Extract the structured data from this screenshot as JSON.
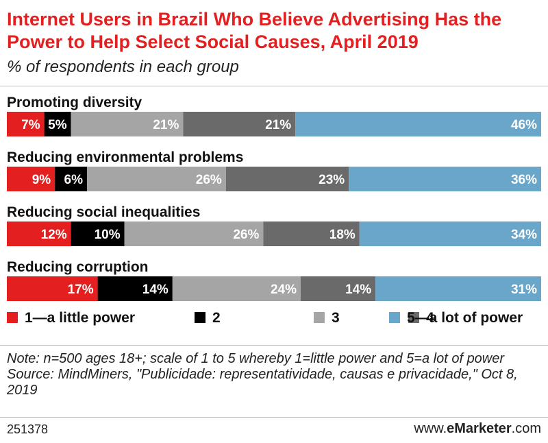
{
  "title": "Internet Users in Brazil Who Believe Advertising Has the Power to Help Select Social Causes, April 2019",
  "subtitle": "% of respondents in each group",
  "colors": {
    "title": "#e41f1f",
    "s1": "#e41f1f",
    "s2": "#000000",
    "s3": "#a5a5a5",
    "s4": "#6a6a6a",
    "s5": "#6aa6c9"
  },
  "chart_data": {
    "type": "bar",
    "orientation": "horizontal",
    "stacked": true,
    "title": "Internet Users in Brazil Who Believe Advertising Has the Power to Help Select Social Causes, April 2019",
    "subtitle": "% of respondents in each group",
    "unit": "%",
    "categories": [
      "Promoting diversity",
      "Reducing environmental problems",
      "Reducing social inequalities",
      "Reducing corruption"
    ],
    "series": [
      {
        "name": "1—a little power",
        "color": "#e41f1f",
        "values": [
          7,
          9,
          12,
          17
        ]
      },
      {
        "name": "2",
        "color": "#000000",
        "values": [
          5,
          6,
          10,
          14
        ]
      },
      {
        "name": "3",
        "color": "#a5a5a5",
        "values": [
          21,
          26,
          26,
          24
        ]
      },
      {
        "name": "4",
        "color": "#6a6a6a",
        "values": [
          21,
          23,
          18,
          14
        ]
      },
      {
        "name": "5—a lot of power",
        "color": "#6aa6c9",
        "values": [
          46,
          36,
          34,
          31
        ]
      }
    ],
    "legend": "bottom"
  },
  "notes": {
    "note": "Note: n=500 ages 18+; scale of 1 to 5 whereby 1=little power and 5=a lot of power",
    "source": "Source: MindMiners, \"Publicidade: representatividade, causas e privacidade,\" Oct 8, 2019"
  },
  "footer": {
    "chart_id": "251378",
    "brand_prefix": "www.",
    "brand_bold": "eMarketer",
    "brand_suffix": ".com"
  }
}
